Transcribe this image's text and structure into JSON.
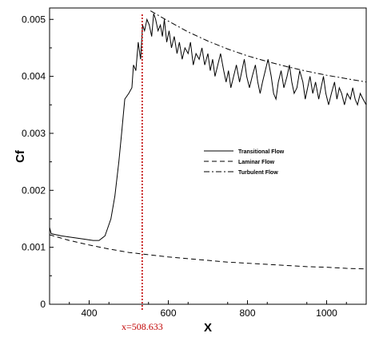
{
  "chart_data": {
    "type": "line",
    "xlabel": "X",
    "ylabel": "Cf",
    "xlim": [
      300,
      1100
    ],
    "ylim": [
      0,
      0.0052
    ],
    "xticks": [
      400,
      600,
      800,
      1000
    ],
    "yticks": [
      0,
      0.001,
      0.002,
      0.003,
      0.004,
      0.005
    ],
    "x_tick_labels": [
      "400",
      "600",
      "800",
      "1000"
    ],
    "y_tick_labels": [
      "0",
      "0.001",
      "0.002",
      "0.003",
      "0.004",
      "0.005"
    ],
    "grid": false,
    "legend_position": "center-right",
    "series": [
      {
        "name": "Transitional Flow",
        "style": "solid",
        "x": [
          300,
          304,
          310,
          330,
          360,
          390,
          410,
          425,
          440,
          455,
          465,
          475,
          482,
          490,
          500,
          508,
          512,
          518,
          524,
          530,
          535,
          540,
          546,
          552,
          558,
          563,
          568,
          574,
          580,
          585,
          590,
          596,
          602,
          608,
          615,
          622,
          628,
          635,
          642,
          650,
          656,
          663,
          670,
          678,
          685,
          692,
          700,
          706,
          712,
          718,
          725,
          732,
          740,
          746,
          752,
          758,
          765,
          772,
          780,
          786,
          792,
          798,
          805,
          812,
          820,
          826,
          832,
          838,
          845,
          852,
          860,
          866,
          872,
          878,
          885,
          892,
          900,
          906,
          912,
          918,
          925,
          932,
          940,
          946,
          952,
          958,
          965,
          972,
          980,
          986,
          992,
          998,
          1005,
          1012,
          1020,
          1026,
          1032,
          1038,
          1045,
          1052,
          1060,
          1066,
          1072,
          1078,
          1085,
          1092,
          1100
        ],
        "y": [
          0.00135,
          0.00124,
          0.00123,
          0.0012,
          0.00117,
          0.00114,
          0.00112,
          0.00112,
          0.0012,
          0.0015,
          0.0019,
          0.0025,
          0.003,
          0.0036,
          0.0037,
          0.0038,
          0.0042,
          0.0041,
          0.0046,
          0.0043,
          0.0049,
          0.0048,
          0.005,
          0.0049,
          0.0047,
          0.0051,
          0.005,
          0.0048,
          0.0049,
          0.0047,
          0.005,
          0.0046,
          0.0048,
          0.0045,
          0.0047,
          0.0044,
          0.0046,
          0.0043,
          0.0045,
          0.0044,
          0.0046,
          0.0042,
          0.0044,
          0.0043,
          0.0045,
          0.0042,
          0.0044,
          0.0041,
          0.0043,
          0.004,
          0.0042,
          0.0044,
          0.0041,
          0.0039,
          0.0041,
          0.0038,
          0.004,
          0.0042,
          0.0039,
          0.0041,
          0.0043,
          0.004,
          0.0038,
          0.004,
          0.0042,
          0.0039,
          0.0037,
          0.0039,
          0.0041,
          0.0043,
          0.004,
          0.0037,
          0.0036,
          0.0039,
          0.0041,
          0.0038,
          0.004,
          0.0042,
          0.0039,
          0.0037,
          0.0038,
          0.0041,
          0.0039,
          0.0036,
          0.0038,
          0.004,
          0.0037,
          0.0039,
          0.0036,
          0.0038,
          0.004,
          0.0037,
          0.0035,
          0.0037,
          0.0039,
          0.0036,
          0.0038,
          0.0037,
          0.0035,
          0.0037,
          0.0036,
          0.0038,
          0.0036,
          0.0035,
          0.0037,
          0.0036,
          0.0035
        ]
      },
      {
        "name": "Laminar Flow",
        "style": "dashed",
        "x": [
          300,
          350,
          400,
          450,
          500,
          550,
          600,
          650,
          700,
          750,
          800,
          850,
          900,
          950,
          1000,
          1050,
          1100
        ],
        "y": [
          0.00122,
          0.00112,
          0.00104,
          0.00097,
          0.00091,
          0.00087,
          0.00083,
          0.0008,
          0.00077,
          0.00074,
          0.00072,
          0.0007,
          0.00068,
          0.00066,
          0.00065,
          0.00063,
          0.00062
        ]
      },
      {
        "name": "Turbulent Flow",
        "style": "dash-dot",
        "x": [
          555,
          600,
          650,
          700,
          750,
          800,
          850,
          900,
          950,
          1000,
          1050,
          1100
        ],
        "y": [
          0.00515,
          0.00497,
          0.00478,
          0.00462,
          0.00448,
          0.00436,
          0.00426,
          0.00417,
          0.00409,
          0.00402,
          0.00396,
          0.0039
        ]
      }
    ],
    "marker": {
      "x": 534,
      "label": "x=508.633",
      "color": "#c00000"
    }
  }
}
